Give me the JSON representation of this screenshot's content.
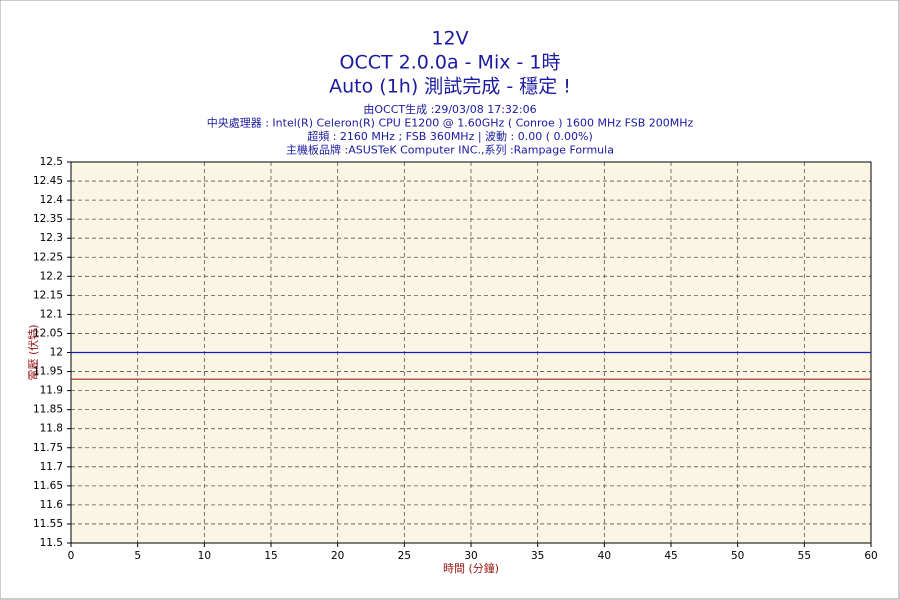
{
  "chart_data": {
    "type": "line",
    "titles": [
      "12V",
      "OCCT 2.0.0a - Mix - 1時",
      "Auto (1h) 測試完成 - 穩定 !"
    ],
    "subtitles": [
      "由OCCT生成 :29/03/08 17:32:06",
      "中央處理器 : Intel(R) Celeron(R) CPU E1200 @ 1.60GHz ( Conroe ) 1600 MHz FSB 200MHz",
      "超頻 : 2160 MHz ; FSB 360MHz | 波動 : 0.00 ( 0.00%)",
      "主機板品牌 :ASUSTeK Computer INC.,系列 :Rampage Formula"
    ],
    "x_label": "時間 (分鐘)",
    "y_label": "電壓 (伏特)",
    "x": [
      0,
      60
    ],
    "series": [
      {
        "color": "#1a1acc",
        "values": [
          12,
          12
        ]
      },
      {
        "color": "#a02828",
        "values": [
          11.93,
          11.93
        ]
      }
    ],
    "xlim": [
      0,
      60
    ],
    "xticks": [
      0,
      5,
      10,
      15,
      20,
      25,
      30,
      35,
      40,
      45,
      50,
      55,
      60
    ],
    "ylim": [
      11.5,
      12.5
    ],
    "yticks": [
      11.5,
      11.55,
      11.6,
      11.65,
      11.7,
      11.75,
      11.8,
      11.85,
      11.9,
      11.95,
      12,
      12.05,
      12.1,
      12.15,
      12.2,
      12.25,
      12.3,
      12.35,
      12.4,
      12.45,
      12.5
    ],
    "grid": true
  }
}
